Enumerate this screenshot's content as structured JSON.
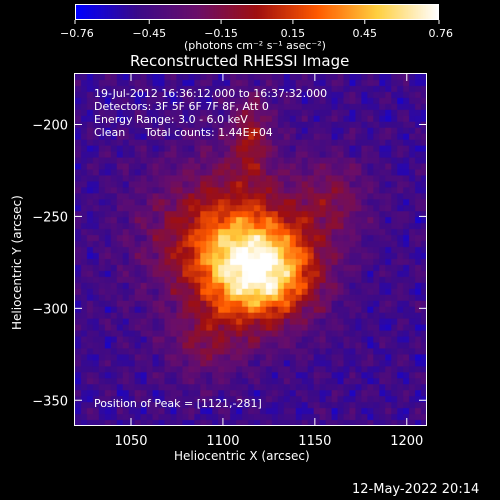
{
  "chart_data": {
    "type": "heatmap",
    "title": "Reconstructed RHESSI Image",
    "xlabel": "Heliocentric X (arcsec)",
    "ylabel": "Heliocentric Y (arcsec)",
    "xlim": [
      1019,
      1211
    ],
    "ylim": [
      -364,
      -172
    ],
    "x_ticks": [
      1050,
      1100,
      1150,
      1200
    ],
    "y_ticks": [
      -200,
      -250,
      -300,
      -350
    ],
    "peak": [
      1121,
      -281
    ],
    "colorbar": {
      "range": [
        -0.76,
        0.76
      ],
      "tick_labels": [
        "-0.76",
        "-0.45",
        "-0.15",
        "0.15",
        "0.45",
        "0.76"
      ],
      "unit_label": "(photons cm⁻² s⁻¹ asec⁻²)",
      "colors": [
        "#0000ff",
        "#3a0a8a",
        "#6a0e6a",
        "#a01010",
        "#ff5a00",
        "#ffd040",
        "#ffffff"
      ]
    },
    "annotations": {
      "time_range": "19-Jul-2012 16:36:12.000 to 16:37:32.000",
      "detectors": "Detectors: 3F 5F 6F 7F 8F, Att 0",
      "energy_range": "Energy Range: 3.0 - 6.0 keV",
      "algorithm": "Clean",
      "total_counts": "Total counts: 1.44E+04",
      "peak_position": "Position of Peak = [1121,-281]"
    }
  },
  "footer": {
    "timestamp": "12-May-2022 20:14"
  }
}
